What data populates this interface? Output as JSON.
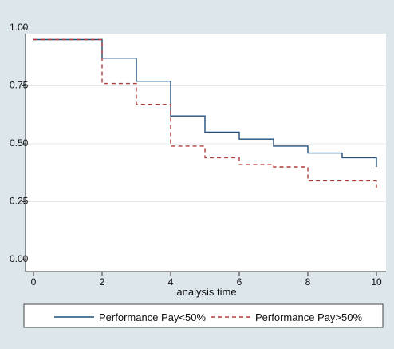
{
  "chart_data": {
    "type": "line",
    "subtype": "step",
    "title": "",
    "xlabel": "analysis time",
    "ylabel": "",
    "xlim": [
      0,
      10
    ],
    "ylim": [
      0,
      1
    ],
    "x_ticks": [
      "0",
      "2",
      "4",
      "6",
      "8",
      "10"
    ],
    "y_ticks": [
      "0.00",
      "0.25",
      "0.50",
      "0.75",
      "1.00"
    ],
    "grid": "horizontal",
    "legend_position": "bottom",
    "series": [
      {
        "name": "Performance Pay<50%",
        "style": "solid",
        "color": "#1f4e79",
        "x": [
          0,
          2,
          3,
          4,
          5,
          6,
          7,
          8,
          9,
          10
        ],
        "y": [
          0.95,
          0.87,
          0.77,
          0.62,
          0.55,
          0.52,
          0.49,
          0.46,
          0.44,
          0.4
        ]
      },
      {
        "name": "Performance Pay>50%",
        "style": "dashed",
        "color": "#b03a3a",
        "x": [
          0,
          2,
          3,
          4,
          5,
          6,
          7,
          8,
          10
        ],
        "y": [
          0.95,
          0.76,
          0.67,
          0.49,
          0.44,
          0.41,
          0.4,
          0.34,
          0.31
        ]
      }
    ]
  }
}
